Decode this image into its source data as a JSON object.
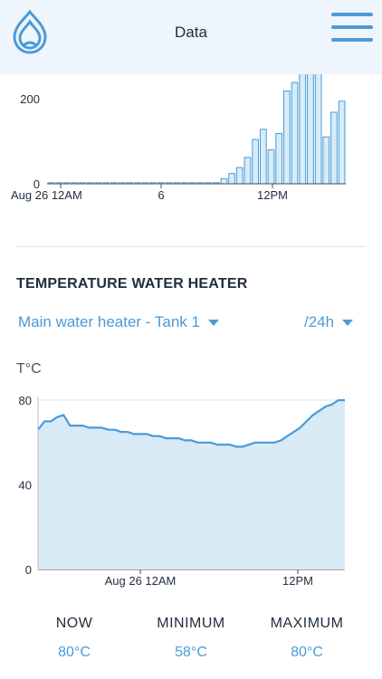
{
  "header": {
    "title": "Data"
  },
  "usage_chart": {
    "chart_data": {
      "type": "bar",
      "x_tick_labels": [
        "Aug 26 12AM",
        "6",
        "12PM"
      ],
      "y_tick_labels": [
        "0",
        "200"
      ],
      "ylim": [
        0,
        260
      ],
      "values": [
        0,
        0,
        0,
        0,
        0,
        0,
        0,
        0,
        0,
        0,
        0,
        0,
        0,
        0,
        0,
        0,
        0,
        0,
        0,
        0,
        0,
        0,
        12,
        24,
        38,
        62,
        104,
        128,
        80,
        118,
        218,
        238,
        265,
        270,
        268,
        110,
        168,
        194
      ],
      "colors": {
        "fill": "#d7ebf8",
        "stroke": "#4a9bd8"
      }
    }
  },
  "temperature": {
    "section_title": "TEMPERATURE WATER HEATER",
    "heater_select": "Main water heater - Tank 1",
    "range_select": "/24h",
    "chart_data": {
      "type": "area",
      "ylabel": "T°C",
      "y_tick_labels": [
        "0",
        "40",
        "80"
      ],
      "x_tick_labels": [
        "Aug 26 12AM",
        "12PM"
      ],
      "ylim": [
        0,
        80
      ],
      "values": [
        66,
        70,
        70,
        72,
        73,
        68,
        68,
        68,
        67,
        67,
        67,
        66,
        66,
        65,
        65,
        64,
        64,
        64,
        63,
        63,
        62,
        62,
        62,
        61,
        61,
        60,
        60,
        60,
        59,
        59,
        59,
        58,
        58,
        59,
        60,
        60,
        60,
        60,
        61,
        63,
        65,
        67,
        70,
        73,
        75,
        77,
        78,
        80,
        80
      ],
      "colors": {
        "line": "#4a9bd8",
        "fill": "#d9eaf7",
        "grid": "#dde3ea"
      }
    },
    "stats": {
      "now": {
        "label": "NOW",
        "value": "80°C"
      },
      "minimum": {
        "label": "MINIMUM",
        "value": "58°C"
      },
      "maximum": {
        "label": "MAXIMUM",
        "value": "80°C"
      }
    }
  },
  "icons": {
    "logo": "water-drop-logo-icon",
    "menu": "hamburger-menu-icon",
    "caret": "caret-down-icon"
  }
}
